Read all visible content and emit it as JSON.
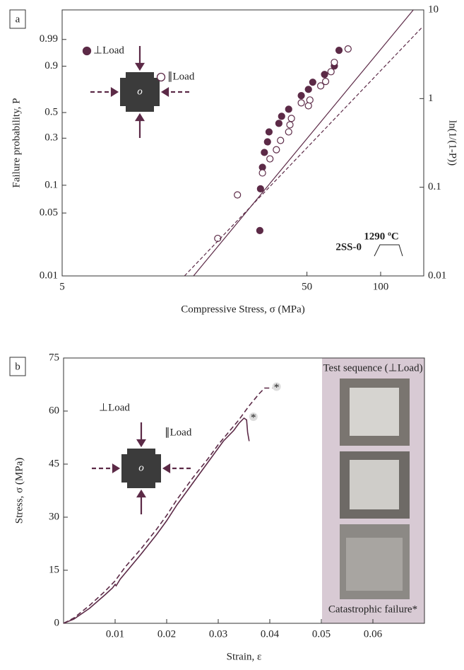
{
  "chart_data": [
    {
      "type": "scatter",
      "panel_label": "a",
      "xlabel": "Compressive Stress, σ (MPa)",
      "ylabel": "Failure probability, P",
      "y2label": "ln(1/(1-P))",
      "xscale": "log",
      "xlim": [
        5,
        150
      ],
      "xticks": [
        5,
        50,
        100
      ],
      "yscale": "weibull",
      "ylim": [
        0.01,
        0.99995
      ],
      "yticks": [
        0.01,
        0.05,
        0.1,
        0.3,
        0.5,
        0.9,
        0.99
      ],
      "y2scale": "log",
      "y2lim": [
        0.01,
        10
      ],
      "y2ticks": [
        0.01,
        0.1,
        1,
        10
      ],
      "annotations": [
        "1290 ºC",
        "2SS-0"
      ],
      "diagram_label": "o",
      "series": [
        {
          "name": "⊥Load",
          "color": "#5c2a47",
          "style": "filled",
          "axis": "y2",
          "x": [
            32.1,
            32.3,
            32.9,
            33.5,
            34.5,
            35.0,
            38.4,
            39.4,
            42.1,
            47.4,
            50.7,
            52.8,
            59.0,
            64.7,
            67.6
          ],
          "values": [
            0.0325,
            0.096,
            0.168,
            0.247,
            0.325,
            0.421,
            0.525,
            0.631,
            0.759,
            1.08,
            1.27,
            1.53,
            1.87,
            2.33,
            3.5
          ]
        },
        {
          "name": "∥Load",
          "color": "#5c2a47",
          "style": "open",
          "axis": "y2",
          "x": [
            21.6,
            26.0,
            32.9,
            35.3,
            37.5,
            39.0,
            42.1,
            42.6,
            43.2,
            47.4,
            50.7,
            51.4,
            56.9,
            59.6,
            62.7,
            64.7,
            73.6
          ],
          "values": [
            0.0265,
            0.082,
            0.145,
            0.209,
            0.265,
            0.337,
            0.421,
            0.506,
            0.597,
            0.895,
            0.83,
            0.964,
            1.39,
            1.56,
            2.01,
            2.56,
            3.63
          ]
        },
        {
          "color": "#5c2a47",
          "style": "solid",
          "axis": "y2",
          "x": [
            17.2,
            136
          ],
          "values": [
            0.01,
            10
          ]
        },
        {
          "color": "#5c2a47",
          "style": "dashed",
          "axis": "y2",
          "x": [
            15.8,
            148
          ],
          "values": [
            0.01,
            6.4
          ]
        }
      ]
    },
    {
      "type": "line",
      "panel_label": "b",
      "xlabel": "Strain, ε",
      "ylabel": "Stress, σ (MPa)",
      "xlim": [
        0,
        0.07
      ],
      "xticks": [
        0.01,
        0.02,
        0.03,
        0.04,
        0.05,
        0.06
      ],
      "ylim": [
        0,
        75
      ],
      "yticks": [
        0,
        15,
        30,
        45,
        60,
        75
      ],
      "annotations": [
        "*",
        "*"
      ],
      "diagram_label": "o",
      "inset_title": "Test sequence (⊥Load)",
      "inset_caption": "Catastrophic failure*",
      "series": [
        {
          "name": "⊥Load",
          "color": "#5c2a47",
          "style": "solid",
          "x": [
            0,
            0.002,
            0.005,
            0.008,
            0.0095,
            0.01,
            0.0102,
            0.011,
            0.013,
            0.015,
            0.018,
            0.02,
            0.022,
            0.025,
            0.028,
            0.03,
            0.031,
            0.033,
            0.034,
            0.035,
            0.0355,
            0.0357,
            0.036
          ],
          "values": [
            0,
            1.2,
            4.2,
            8,
            10,
            11,
            10.6,
            12.5,
            16,
            19.5,
            25,
            29,
            33.5,
            39.5,
            45.5,
            49.5,
            51.5,
            54.5,
            56.5,
            58,
            57.5,
            54,
            51.5
          ]
        },
        {
          "name": "∥Load",
          "color": "#5c2a47",
          "style": "dashed",
          "x": [
            0,
            0.002,
            0.005,
            0.008,
            0.01,
            0.012,
            0.015,
            0.018,
            0.02,
            0.022,
            0.025,
            0.028,
            0.03,
            0.032,
            0.034,
            0.036,
            0.038,
            0.039,
            0.0405
          ],
          "values": [
            0,
            1.5,
            5,
            9,
            12,
            16,
            21,
            26.5,
            30.5,
            35,
            41,
            46.5,
            50.5,
            54,
            57.5,
            61.5,
            65,
            66.5,
            66.5
          ]
        }
      ]
    }
  ]
}
